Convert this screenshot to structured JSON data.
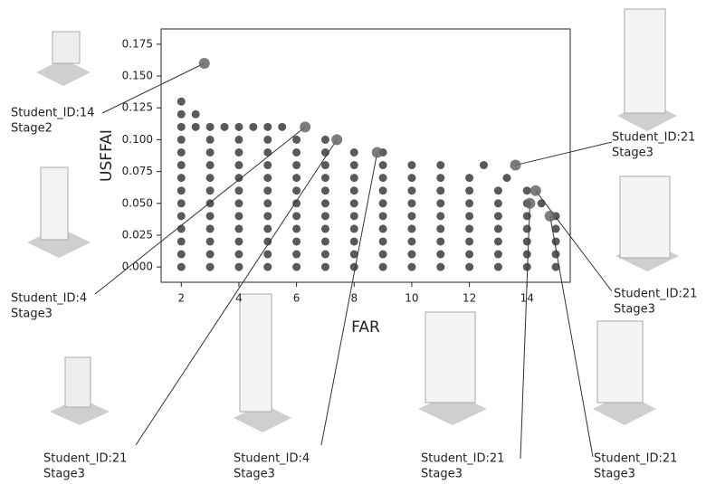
{
  "chart_data": {
    "type": "scatter",
    "x_label": "FAR",
    "y_label": "USFFAI",
    "xlim": [
      1.3,
      15.5
    ],
    "ylim": [
      -0.012,
      0.187
    ],
    "xticks": [
      2,
      4,
      6,
      8,
      10,
      12,
      14
    ],
    "yticks": [
      {
        "value": 0,
        "label": "0.000"
      },
      {
        "value": 0.025,
        "label": "0.025"
      },
      {
        "value": 0.05,
        "label": "0.050"
      },
      {
        "value": 0.075,
        "label": "0.075"
      },
      {
        "value": 0.1,
        "label": "0.100"
      },
      {
        "value": 0.125,
        "label": "0.125"
      },
      {
        "value": 0.15,
        "label": "0.150"
      },
      {
        "value": 0.175,
        "label": "0.175"
      }
    ],
    "color": "#000000",
    "x": [
      2,
      2,
      2.5,
      2,
      2.5,
      3,
      3.5,
      4,
      4.5,
      5,
      5.5,
      2,
      3,
      4,
      5,
      6,
      7,
      2,
      3,
      4,
      5,
      6,
      7,
      8,
      9,
      2,
      3,
      4,
      5,
      6,
      7,
      8,
      9,
      10,
      11,
      12.5,
      2,
      3,
      4,
      5,
      6,
      7,
      8,
      9,
      10,
      11,
      12,
      13.3,
      2,
      3,
      4,
      5,
      6,
      7,
      8,
      9,
      10,
      11,
      12,
      13,
      14,
      2,
      3,
      4,
      5,
      6,
      7,
      8,
      9,
      10,
      11,
      12,
      13,
      14,
      14.5,
      2,
      3,
      4,
      5,
      6,
      7,
      8,
      9,
      10,
      11,
      12,
      13,
      14,
      15,
      2,
      3,
      4,
      5,
      6,
      7,
      8,
      9,
      10,
      11,
      12,
      13,
      14,
      15,
      2,
      3,
      4,
      5,
      6,
      7,
      8,
      9,
      10,
      11,
      12,
      13,
      14,
      15,
      2,
      3,
      4,
      5,
      6,
      7,
      8,
      9,
      10,
      11,
      12,
      13,
      14,
      15,
      2,
      3,
      4,
      5,
      6,
      7,
      8,
      9,
      10,
      11,
      12,
      13,
      14,
      15
    ],
    "values": [
      0.13,
      0.12,
      0.12,
      0.11,
      0.11,
      0.11,
      0.11,
      0.11,
      0.11,
      0.11,
      0.11,
      0.1,
      0.1,
      0.1,
      0.1,
      0.1,
      0.1,
      0.09,
      0.09,
      0.09,
      0.09,
      0.09,
      0.09,
      0.09,
      0.09,
      0.08,
      0.08,
      0.08,
      0.08,
      0.08,
      0.08,
      0.08,
      0.08,
      0.08,
      0.08,
      0.08,
      0.07,
      0.07,
      0.07,
      0.07,
      0.07,
      0.07,
      0.07,
      0.07,
      0.07,
      0.07,
      0.07,
      0.07,
      0.06,
      0.06,
      0.06,
      0.06,
      0.06,
      0.06,
      0.06,
      0.06,
      0.06,
      0.06,
      0.06,
      0.06,
      0.06,
      0.05,
      0.05,
      0.05,
      0.05,
      0.05,
      0.05,
      0.05,
      0.05,
      0.05,
      0.05,
      0.05,
      0.05,
      0.05,
      0.05,
      0.04,
      0.04,
      0.04,
      0.04,
      0.04,
      0.04,
      0.04,
      0.04,
      0.04,
      0.04,
      0.04,
      0.04,
      0.04,
      0.04,
      0.03,
      0.03,
      0.03,
      0.03,
      0.03,
      0.03,
      0.03,
      0.03,
      0.03,
      0.03,
      0.03,
      0.03,
      0.03,
      0.03,
      0.02,
      0.02,
      0.02,
      0.02,
      0.02,
      0.02,
      0.02,
      0.02,
      0.02,
      0.02,
      0.02,
      0.02,
      0.02,
      0.02,
      0.01,
      0.01,
      0.01,
      0.01,
      0.01,
      0.01,
      0.01,
      0.01,
      0.01,
      0.01,
      0.01,
      0.01,
      0.01,
      0.01,
      0,
      0,
      0,
      0,
      0,
      0,
      0,
      0,
      0,
      0,
      0,
      0,
      0,
      0
    ],
    "annotations": [
      {
        "text": [
          "Student_ID:14",
          "Stage2"
        ],
        "x": 2.8,
        "y": 0.16
      },
      {
        "text": [
          "Student_ID:4",
          "Stage3"
        ],
        "x": 6.3,
        "y": 0.11
      },
      {
        "text": [
          "Student_ID:21",
          "Stage3"
        ],
        "x": 7.4,
        "y": 0.1
      },
      {
        "text": [
          "Student_ID:4",
          "Stage3"
        ],
        "x": 8.8,
        "y": 0.09
      },
      {
        "text": [
          "Student_ID:21",
          "Stage3"
        ],
        "x": 13.6,
        "y": 0.08
      },
      {
        "text": [
          "Student_ID:21",
          "Stage3"
        ],
        "x": 14.3,
        "y": 0.06
      },
      {
        "text": [
          "Student_ID:21",
          "Stage3"
        ],
        "x": 14.1,
        "y": 0.05
      },
      {
        "text": [
          "Student_ID:21",
          "Stage3"
        ],
        "x": 14.8,
        "y": 0.04
      }
    ]
  }
}
